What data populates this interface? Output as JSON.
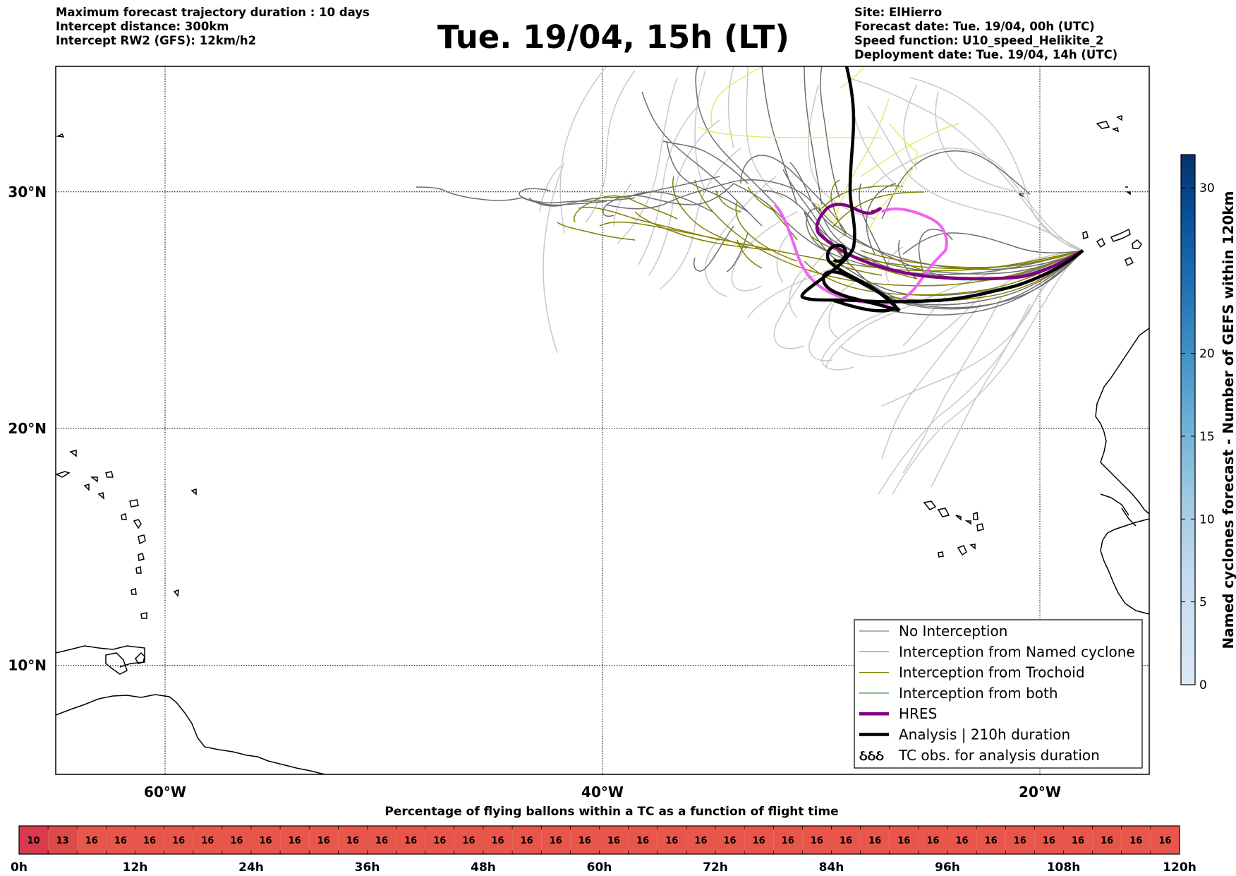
{
  "header": {
    "left": [
      "Maximum forecast trajectory duration : 10 days",
      "Intercept distance: 300km",
      "Intercept RW2 (GFS):  12km/h2"
    ],
    "title": "Tue. 19/04, 15h (LT)",
    "right": [
      "Site: ElHierro",
      "Forecast date: Tue. 19/04, 00h (UTC)",
      "Speed function: U10_speed_Helikite_2",
      "Deployment date: Tue. 19/04, 14h (UTC)"
    ]
  },
  "map": {
    "lat_labels": [
      "30°N",
      "20°N",
      "10°N"
    ],
    "lon_labels": [
      "60°W",
      "40°W",
      "20°W"
    ],
    "lat_values": [
      30,
      20,
      10
    ],
    "lon_values": [
      -60,
      -40,
      -20
    ],
    "extent": {
      "lon_min": -65,
      "lon_max": -15,
      "lat_min": 5.4,
      "lat_max": 35.3
    },
    "legend": [
      {
        "label": "No Interception",
        "color": "#808080",
        "style": "thin"
      },
      {
        "label": "Interception from Named cyclone",
        "color": "#ff6a2a",
        "style": "thin"
      },
      {
        "label": "Interception from Trochoid",
        "color": "#808000",
        "style": "thin"
      },
      {
        "label": "Interception from both",
        "color": "#2e8b2e",
        "style": "thin"
      },
      {
        "label": "HRES",
        "color": "#800080",
        "style": "thick"
      },
      {
        "label": "Analysis | 210h duration",
        "color": "#000000",
        "style": "thick"
      },
      {
        "label": "TC obs. for analysis duration",
        "color": "#000000",
        "style": "symbol",
        "symbol": "ઠઠઠ"
      }
    ]
  },
  "colorbar": {
    "label": "Named cyclones forecast - Number of GEFS within 120km",
    "ticks": [
      "0",
      "5",
      "10",
      "15",
      "20",
      "30"
    ],
    "tick_values": [
      0,
      5,
      10,
      15,
      20,
      30
    ],
    "max": 32,
    "colors": [
      "#dbe9f6",
      "#c6dbef",
      "#9ecae1",
      "#6baed6",
      "#4292c6",
      "#2171b5",
      "#08519c",
      "#08306b"
    ]
  },
  "percentage_bar": {
    "title": "Percentage of flying ballons within a TC as a function of flight time",
    "values": [
      10,
      13,
      16,
      16,
      16,
      16,
      16,
      16,
      16,
      16,
      16,
      16,
      16,
      16,
      16,
      16,
      16,
      16,
      16,
      16,
      16,
      16,
      16,
      16,
      16,
      16,
      16,
      16,
      16,
      16,
      16,
      16,
      16,
      16,
      16,
      16,
      16,
      16,
      16,
      16
    ],
    "time_labels": [
      "0h",
      "12h",
      "24h",
      "36h",
      "48h",
      "60h",
      "72h",
      "84h",
      "96h",
      "108h",
      "120h"
    ],
    "colors": {
      "low": "#d93a4e",
      "mid": "#db4b4a",
      "high": "#e8564b"
    }
  }
}
